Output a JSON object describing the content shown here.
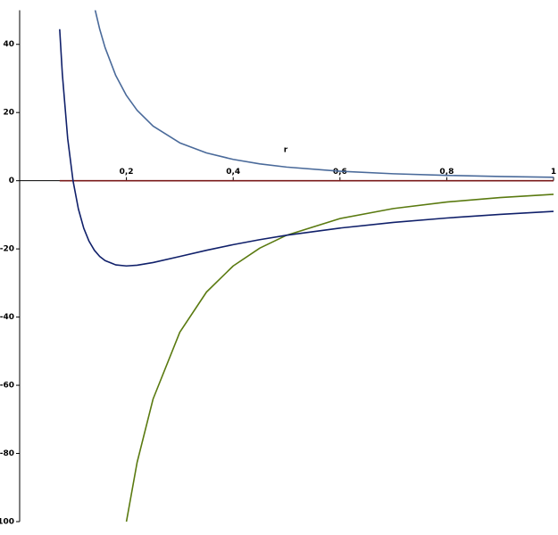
{
  "chart_data": {
    "type": "line",
    "x_label": "r",
    "x": [
      0.075,
      0.08,
      0.09,
      0.1,
      0.11,
      0.12,
      0.13,
      0.14,
      0.15,
      0.16,
      0.18,
      0.2,
      0.22,
      0.25,
      0.3,
      0.35,
      0.4,
      0.45,
      0.5,
      0.6,
      0.7,
      0.8,
      0.9,
      1
    ],
    "series": [
      {
        "color": "#7a1a1a",
        "values": [
          0,
          0,
          0,
          0,
          0,
          0,
          0,
          0,
          0,
          0,
          0,
          0,
          0,
          0,
          0,
          0,
          0,
          0,
          0,
          0,
          0,
          0,
          0,
          0
        ]
      },
      {
        "color": "#4a6a9a",
        "values": [
          null,
          null,
          null,
          null,
          null,
          null,
          null,
          51.02,
          44.44,
          39.06,
          30.86,
          25,
          20.66,
          16,
          11.11,
          8.16,
          6.25,
          4.94,
          4,
          2.78,
          2.04,
          1.56,
          1.23,
          1
        ]
      },
      {
        "color": "#5a7a10",
        "values": [
          null,
          null,
          null,
          null,
          null,
          null,
          null,
          null,
          null,
          null,
          null,
          -100,
          -82.64,
          -64,
          -44.44,
          -32.65,
          -25,
          -19.75,
          -16,
          -11.11,
          -8.16,
          -6.25,
          -4.94,
          -4
        ]
      },
      {
        "color": "#10206a",
        "values": [
          44.44,
          31.25,
          12.35,
          0,
          -8.26,
          -13.89,
          -17.75,
          -20.41,
          -22.22,
          -23.44,
          -24.69,
          -25,
          -24.79,
          -24,
          -22.22,
          -20.41,
          -18.75,
          -17.28,
          -16,
          -13.89,
          -12.24,
          -10.94,
          -9.88,
          -9
        ]
      }
    ],
    "xlim": [
      0,
      1
    ],
    "ylim": [
      -100,
      50
    ],
    "xticks": [
      {
        "value": 0.2,
        "label": "0,2"
      },
      {
        "value": 0.4,
        "label": "0,4"
      },
      {
        "value": 0.6,
        "label": "0,6"
      },
      {
        "value": 0.8,
        "label": "0,8"
      },
      1
    ],
    "yticks": [
      -100,
      -80,
      -60,
      -40,
      -20,
      0,
      20,
      40
    ]
  }
}
